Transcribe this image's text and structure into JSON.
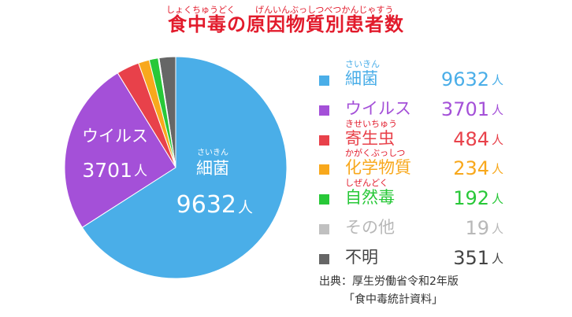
{
  "title": {
    "text": "食中毒の原因物質別患者数",
    "ruby_left": "しょくちゅうどく",
    "ruby_right": "げんいんぶっしつべつかんじゃすう",
    "color": "#e21b2c"
  },
  "chart_data": {
    "type": "pie",
    "title": "食中毒の原因物質別患者数",
    "unit": "人",
    "categories": [
      "細菌",
      "ウイルス",
      "寄生虫",
      "化学物質",
      "自然毒",
      "その他",
      "不明"
    ],
    "values": [
      9632,
      3701,
      484,
      234,
      192,
      19,
      351
    ],
    "colors": [
      "#4aaee8",
      "#a450d8",
      "#e8414a",
      "#f8a81c",
      "#28c838",
      "#c0c0c0",
      "#666666"
    ],
    "legend_placement": "right",
    "pie_labels": [
      {
        "ruby": "さいきん",
        "name": "細菌",
        "value": "9632",
        "unit": "人"
      },
      {
        "name": "ウイルス",
        "value": "3701",
        "unit": "人"
      }
    ]
  },
  "legend": [
    {
      "label": "細菌",
      "ruby": "さいきん",
      "value": "9632",
      "unit": "人",
      "color": "#4aaee8"
    },
    {
      "label": "ウイルス",
      "ruby": "",
      "value": "3701",
      "unit": "人",
      "color": "#a450d8"
    },
    {
      "label": "寄生虫",
      "ruby": "きせいちゅう",
      "value": "484",
      "unit": "人",
      "color": "#e8414a"
    },
    {
      "label": "化学物質",
      "ruby": "かがくぶっしつ",
      "value": "234",
      "unit": "人",
      "color": "#f8a81c"
    },
    {
      "label": "自然毒",
      "ruby": "しぜんどく",
      "value": "192",
      "unit": "人",
      "color": "#28c838"
    },
    {
      "label": "その他",
      "ruby": "",
      "value": "19",
      "unit": "人",
      "color": "#b8b8b8",
      "swatch_color": "#c0c0c0"
    },
    {
      "label": "不明",
      "ruby": "",
      "value": "351",
      "unit": "人",
      "color": "#444444",
      "swatch_color": "#666666"
    }
  ],
  "source": {
    "line1": "出典：厚生労働省令和2年版",
    "line2": "「食中毒統計資料」"
  }
}
